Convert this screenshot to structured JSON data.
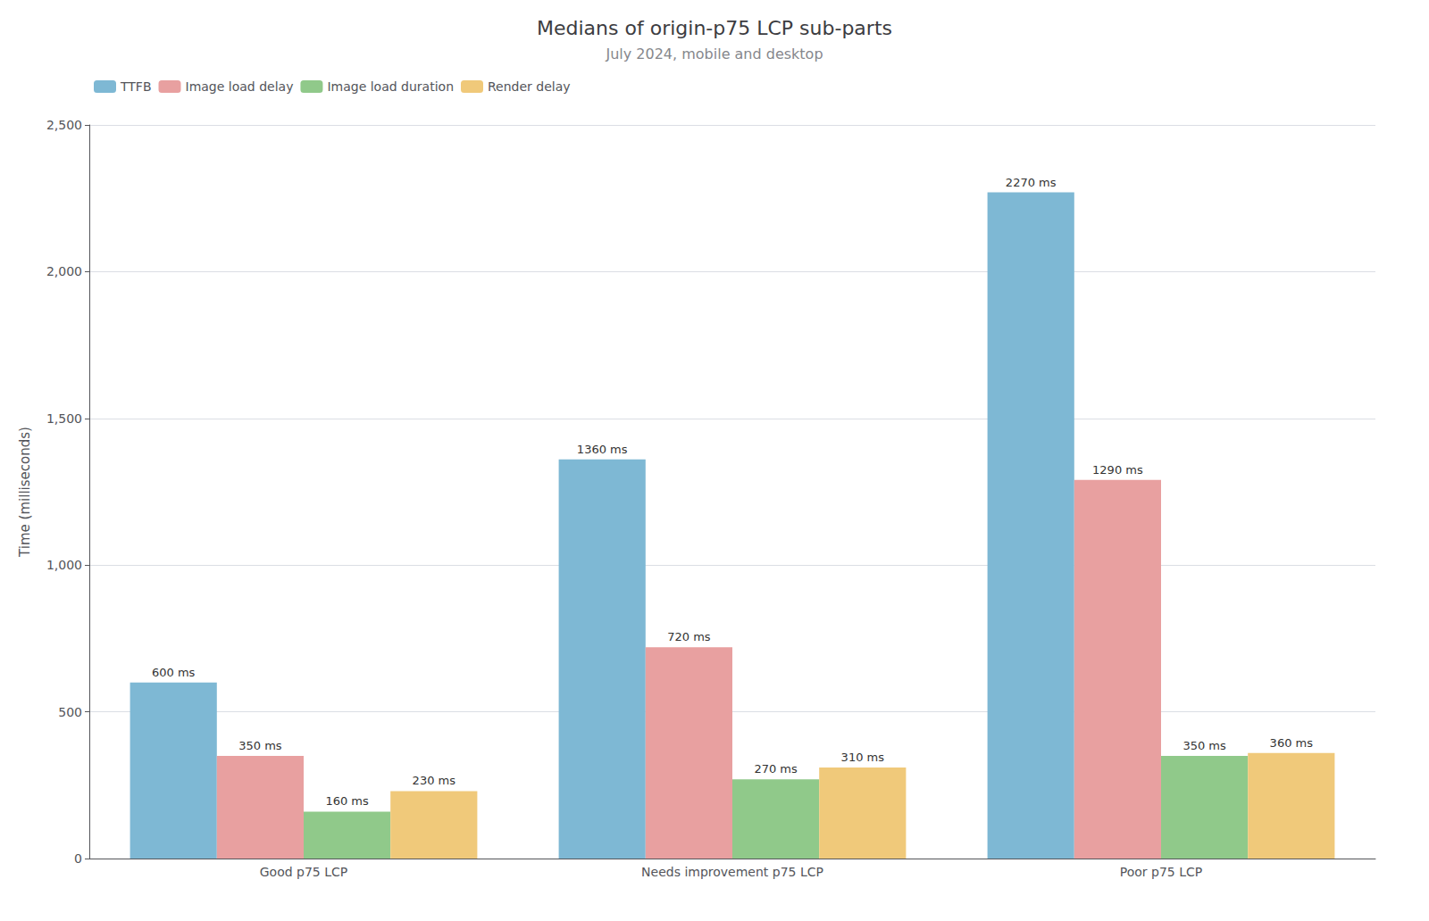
{
  "chart_data": {
    "type": "bar",
    "title": "Medians of origin-p75 LCP sub-parts",
    "subtitle": "July 2024, mobile and desktop",
    "ylabel": "Time (milliseconds)",
    "categories": [
      "Good p75 LCP",
      "Needs improvement p75 LCP",
      "Poor p75 LCP"
    ],
    "series": [
      {
        "name": "TTFB",
        "color": "#7eb8d4",
        "values": [
          600,
          1360,
          2270
        ],
        "value_labels": [
          "600 ms",
          "1360 ms",
          "2270 ms"
        ]
      },
      {
        "name": "Image load delay",
        "color": "#e8a0a0",
        "values": [
          350,
          720,
          1290
        ],
        "value_labels": [
          "350 ms",
          "720 ms",
          "1290 ms"
        ]
      },
      {
        "name": "Image load duration",
        "color": "#90c98a",
        "values": [
          160,
          270,
          350
        ],
        "value_labels": [
          "160 ms",
          "270 ms",
          "350 ms"
        ]
      },
      {
        "name": "Render delay",
        "color": "#f0c97a",
        "values": [
          230,
          310,
          360
        ],
        "value_labels": [
          "230 ms",
          "310 ms",
          "360 ms"
        ]
      }
    ],
    "ylim": [
      0,
      2500
    ],
    "yticks": [
      0,
      500,
      1000,
      1500,
      2000,
      2500
    ],
    "grid": true,
    "legend": "upper left",
    "data_labels": true
  }
}
